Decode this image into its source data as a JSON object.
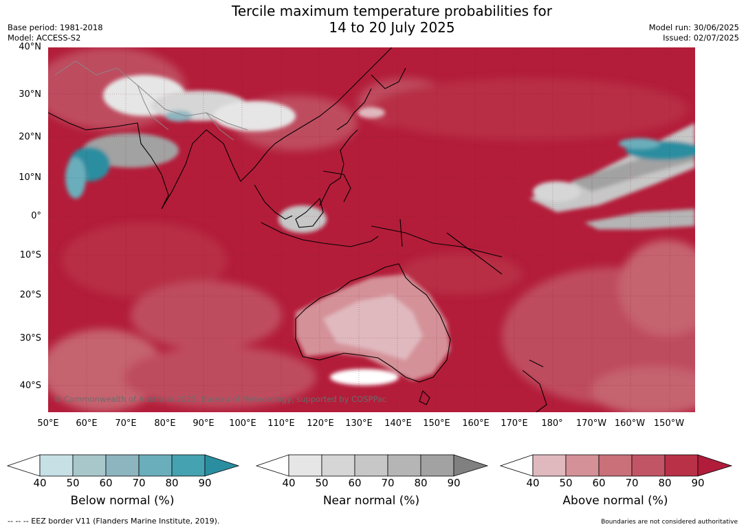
{
  "header": {
    "title_line1": "Tercile maximum temperature probabilities for",
    "title_line2": "14 to 20 July 2025",
    "base_period": "Base period: 1981-2018",
    "model": "Model: ACCESS-S2",
    "model_run": "Model run: 30/06/2025",
    "issued": "Issued: 02/07/2025"
  },
  "map": {
    "copyright": "© Commonwealth of Australia 2025, Bureau of Meteorology, supported by COSPPac",
    "lat_labels": [
      "40°N",
      "30°N",
      "20°N",
      "10°N",
      "0°",
      "10°S",
      "20°S",
      "30°S",
      "40°S"
    ],
    "lon_labels": [
      "50°E",
      "60°E",
      "70°E",
      "80°E",
      "90°E",
      "100°E",
      "110°E",
      "120°E",
      "130°E",
      "140°E",
      "150°E",
      "160°E",
      "170°E",
      "180°",
      "170°W",
      "160°W",
      "150°W"
    ],
    "dominant_category": "Above normal",
    "colors": {
      "ocean_dominant": "#b31d3a",
      "land_outline": "#000000",
      "border_outline": "#888888"
    }
  },
  "colorbars": [
    {
      "title": "Below normal (%)",
      "ticks": [
        "40",
        "50",
        "60",
        "70",
        "80",
        "90"
      ],
      "colors": [
        "#ffffff",
        "#c7e0e6",
        "#a8c7cb",
        "#8db5c0",
        "#6aaebb",
        "#45a2b0",
        "#2a8ea0"
      ]
    },
    {
      "title": "Near normal (%)",
      "ticks": [
        "40",
        "50",
        "60",
        "70",
        "80",
        "90"
      ],
      "colors": [
        "#ffffff",
        "#e6e6e6",
        "#d6d6d6",
        "#c7c7c7",
        "#b5b5b5",
        "#a2a2a2",
        "#808080"
      ]
    },
    {
      "title": "Above normal (%)",
      "ticks": [
        "40",
        "50",
        "60",
        "70",
        "80",
        "90"
      ],
      "colors": [
        "#ffffff",
        "#e0b9bf",
        "#d49198",
        "#c97079",
        "#c15566",
        "#b93147",
        "#b01c3a"
      ]
    }
  ],
  "footer": {
    "eez_note": "--  --  -- EEZ border V11 (Flanders Marine Institute, 2019).",
    "boundaries_note": "Boundaries are not considered authoritative"
  }
}
